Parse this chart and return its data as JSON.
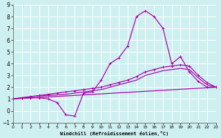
{
  "xlabel": "Windchill (Refroidissement éolien,°C)",
  "bg_color": "#cff0f0",
  "grid_color": "#ffffff",
  "line_color": "#aa00aa",
  "x_min": 0,
  "x_max": 23,
  "y_min": -1,
  "y_max": 9,
  "series1_x": [
    0,
    1,
    2,
    3,
    4,
    5,
    6,
    7,
    8,
    9,
    10,
    11,
    12,
    13,
    14,
    15,
    16,
    17,
    18,
    19,
    20,
    21,
    22,
    23
  ],
  "series1_y": [
    1.0,
    1.1,
    1.1,
    1.1,
    1.0,
    0.7,
    -0.35,
    -0.45,
    1.5,
    1.6,
    2.6,
    4.0,
    4.5,
    5.5,
    8.0,
    8.5,
    8.0,
    7.0,
    4.0,
    4.6,
    3.3,
    2.5,
    2.0,
    2.0
  ],
  "series2_x": [
    0,
    1,
    2,
    3,
    4,
    5,
    6,
    7,
    8,
    9,
    10,
    11,
    12,
    13,
    14,
    15,
    16,
    17,
    18,
    19,
    20,
    21,
    22,
    23
  ],
  "series2_y": [
    1.0,
    1.1,
    1.2,
    1.3,
    1.4,
    1.5,
    1.6,
    1.7,
    1.8,
    1.9,
    2.0,
    2.2,
    2.4,
    2.6,
    2.9,
    3.3,
    3.5,
    3.7,
    3.8,
    3.9,
    3.8,
    3.0,
    2.4,
    2.0
  ],
  "series3_x": [
    0,
    1,
    2,
    3,
    4,
    5,
    6,
    7,
    8,
    9,
    10,
    11,
    12,
    13,
    14,
    15,
    16,
    17,
    18,
    19,
    20,
    21,
    22,
    23
  ],
  "series3_y": [
    1.0,
    1.1,
    1.2,
    1.25,
    1.3,
    1.35,
    1.4,
    1.5,
    1.6,
    1.7,
    1.8,
    2.0,
    2.2,
    2.4,
    2.6,
    3.0,
    3.2,
    3.4,
    3.5,
    3.6,
    3.5,
    2.8,
    2.2,
    2.0
  ],
  "series4_x": [
    0,
    23
  ],
  "series4_y": [
    1.0,
    2.0
  ],
  "x_ticks": [
    0,
    1,
    2,
    3,
    4,
    5,
    6,
    7,
    8,
    9,
    10,
    11,
    12,
    13,
    14,
    15,
    16,
    17,
    18,
    19,
    20,
    21,
    22,
    23
  ],
  "y_ticks": [
    -1,
    0,
    1,
    2,
    3,
    4,
    5,
    6,
    7,
    8,
    9
  ]
}
